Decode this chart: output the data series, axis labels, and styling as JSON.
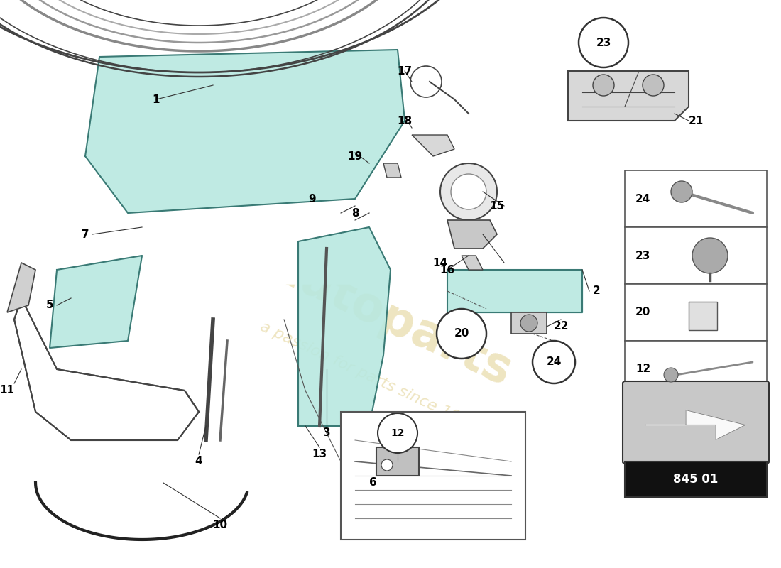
{
  "bg_color": "#ffffff",
  "watermark_color": "#c8a830",
  "watermark_alpha": 0.3,
  "part_number_box": "845 01",
  "glass_tint": "#b8e8e0",
  "glass_stroke": "#3a7a75",
  "body_color": "#f0f0f0",
  "body_stroke": "#444444",
  "label_color": "#000000",
  "label_fontsize": 11,
  "legend_items": [
    "24",
    "23",
    "20",
    "12"
  ]
}
